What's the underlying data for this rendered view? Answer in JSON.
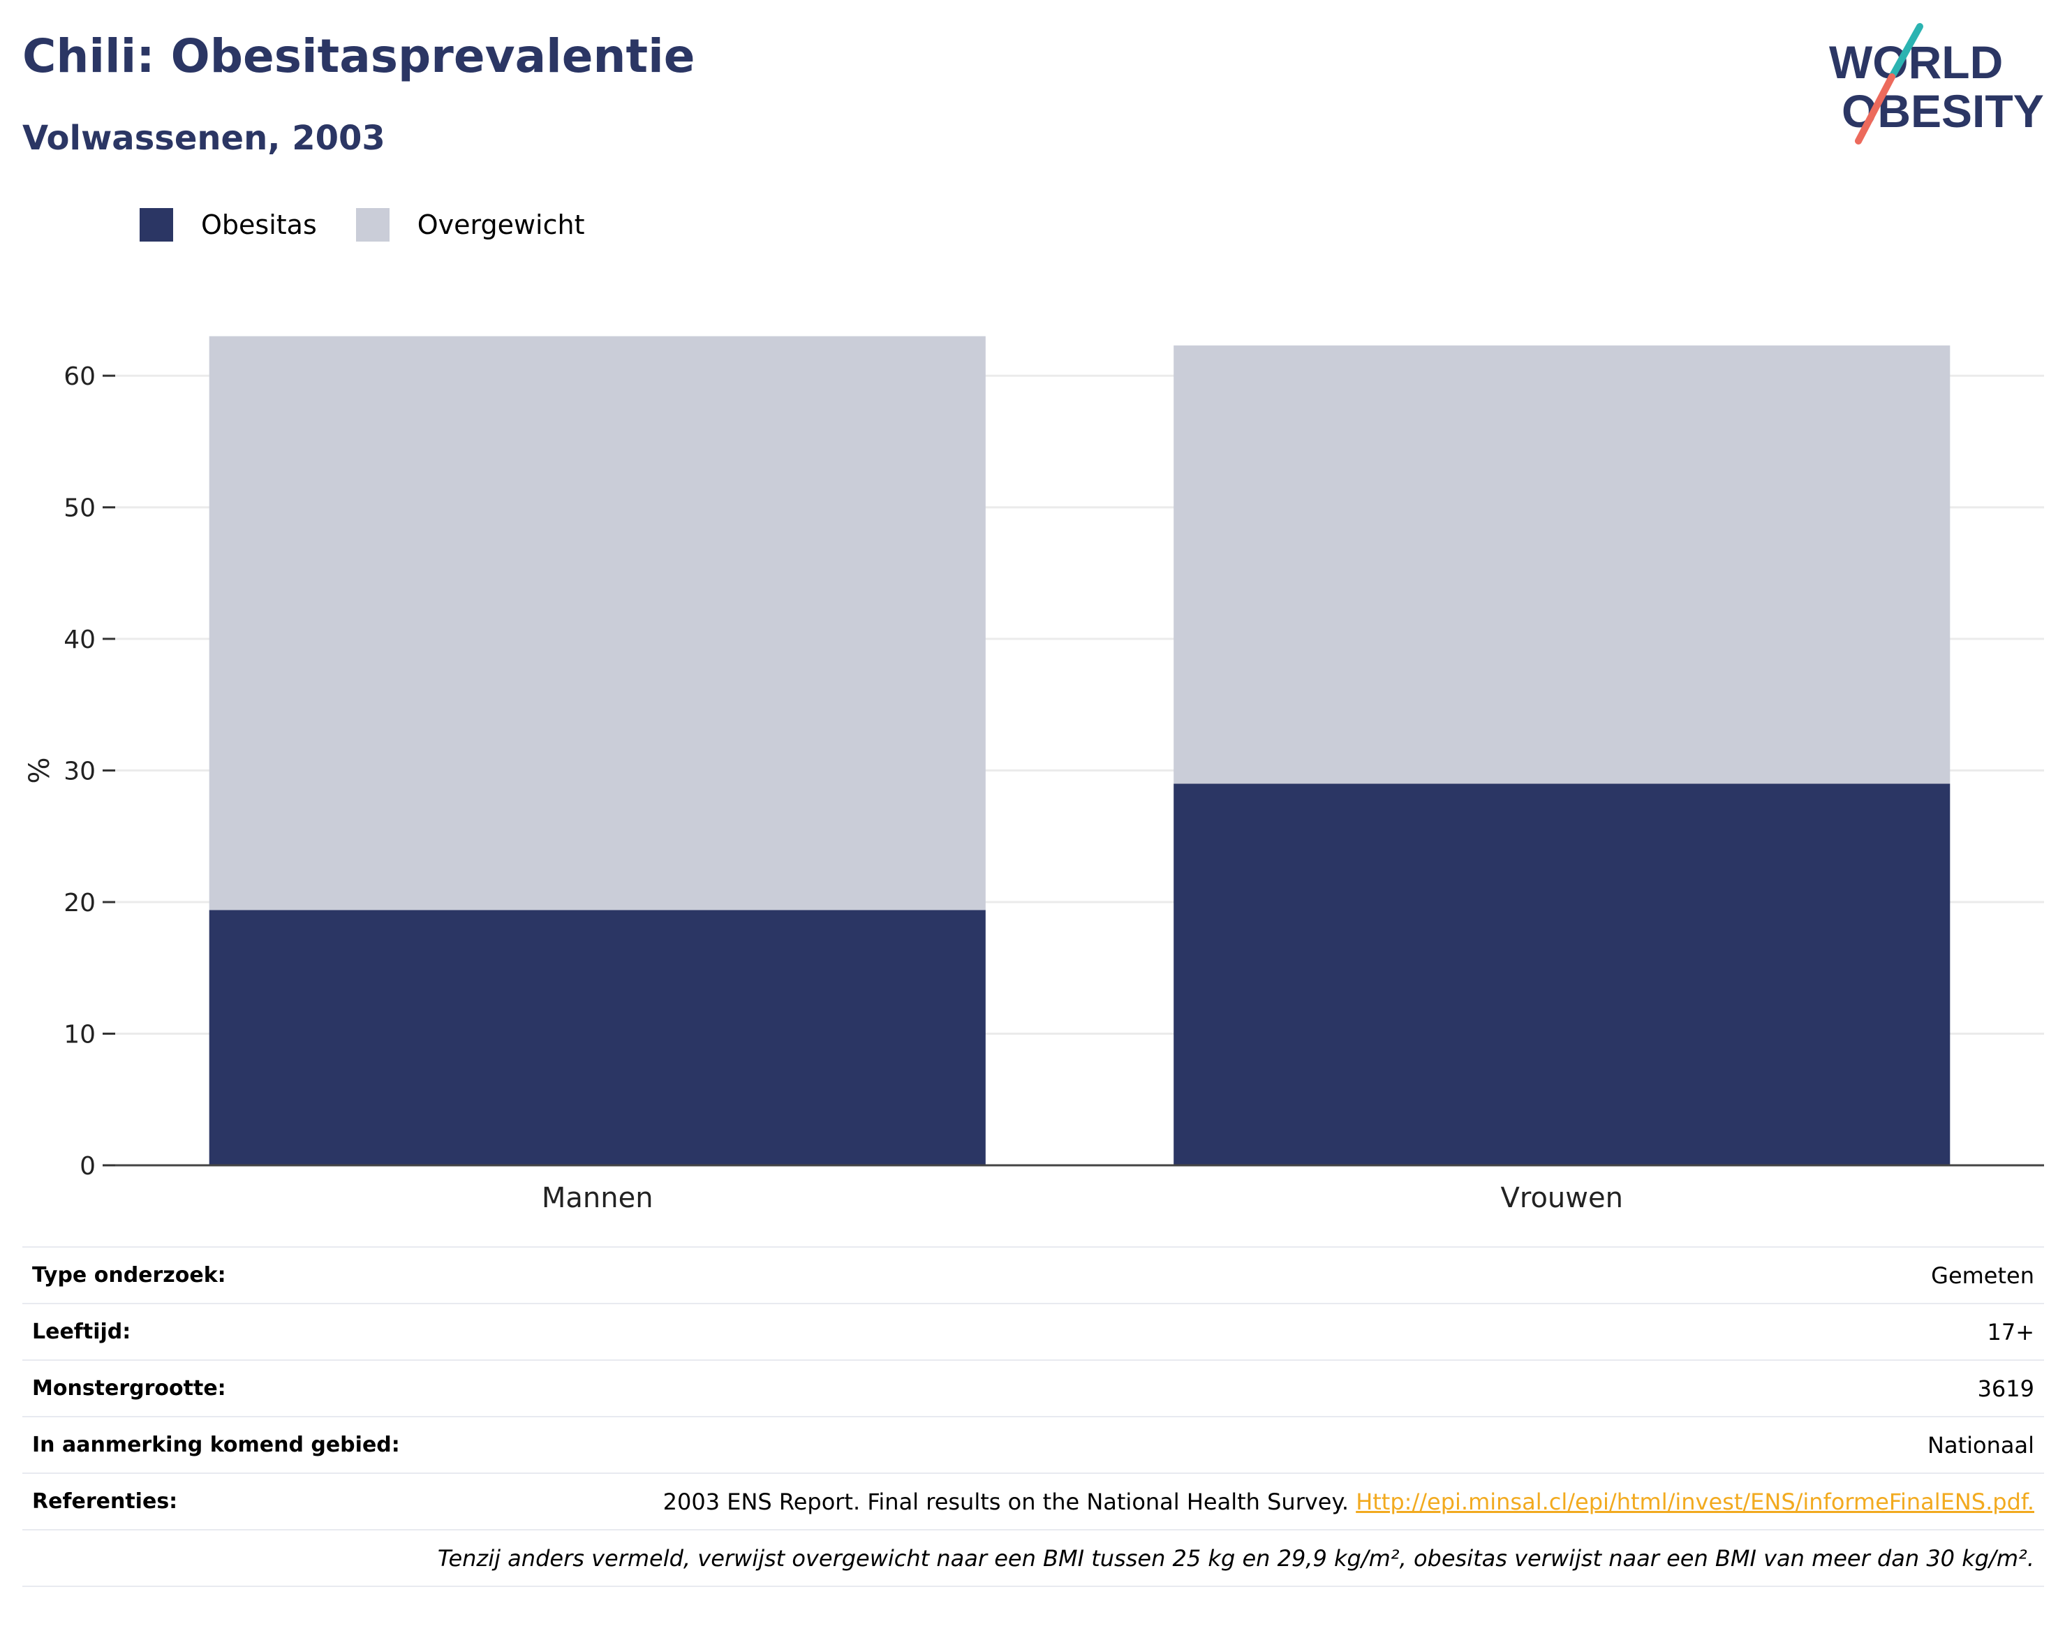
{
  "header": {
    "title": "Chili: Obesitasprevalentie",
    "subtitle": "Volwassenen, 2003"
  },
  "logo": {
    "line1": "WORLD",
    "line2": "OBESITY"
  },
  "colors": {
    "obesitas": "#2b3664",
    "overgewicht": "#cacdd8",
    "title": "#2b3664",
    "accent_teal": "#2bb3b1",
    "accent_coral": "#ec6a5c",
    "link": "#f2aa1f"
  },
  "chart_data": {
    "type": "bar",
    "stacked": true,
    "categories": [
      "Mannen",
      "Vrouwen"
    ],
    "series": [
      {
        "name": "Obesitas",
        "values": [
          19.4,
          29.0
        ],
        "color": "#2b3664"
      },
      {
        "name": "Overgewicht",
        "values": [
          43.6,
          33.3
        ],
        "color": "#cacdd8"
      }
    ],
    "ylabel": "%",
    "ylim": [
      0,
      66
    ],
    "yticks": [
      0,
      10,
      20,
      30,
      40,
      50,
      60
    ],
    "grid": true,
    "legend_position": "top-left"
  },
  "info": {
    "rows": [
      {
        "label": "Type onderzoek:",
        "value": "Gemeten"
      },
      {
        "label": "Leeftijd:",
        "value": "17+"
      },
      {
        "label": "Monstergrootte:",
        "value": "3619"
      },
      {
        "label": "In aanmerking komend gebied:",
        "value": "Nationaal"
      }
    ],
    "references": {
      "label": "Referenties:",
      "text": "2003 ENS Report. Final results on the National Health Survey. ",
      "link": "Http://epi.minsal.cl/epi/html/invest/ENS/informeFinalENS.pdf."
    },
    "note": "Tenzij anders vermeld, verwijst overgewicht naar een BMI tussen 25 kg en 29,9 kg/m², obesitas verwijst naar een BMI van meer dan 30 kg/m²."
  }
}
